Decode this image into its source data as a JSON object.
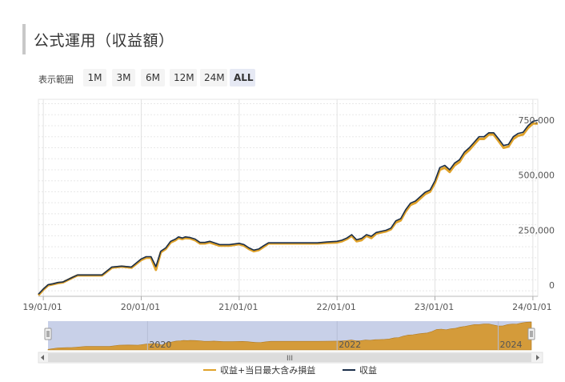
{
  "header": {
    "title": "公式運用（収益額）"
  },
  "range_selector": {
    "label": "表示範囲",
    "buttons": [
      {
        "label": "1M",
        "active": false
      },
      {
        "label": "3M",
        "active": false
      },
      {
        "label": "6M",
        "active": false
      },
      {
        "label": "12M",
        "active": false
      },
      {
        "label": "24M",
        "active": false
      },
      {
        "label": "ALL",
        "active": true
      }
    ]
  },
  "navigator": {
    "labels": [
      "2020",
      "2022",
      "2024"
    ],
    "scroll_grip": "III"
  },
  "colors": {
    "series_a": "#e0a22a",
    "series_b": "#1b2f4a",
    "navigator_fill": "#d49b3a",
    "navigator_mask": "#c8d0e8"
  },
  "chart_data": {
    "type": "line",
    "title": "公式運用（収益額）",
    "xlabel": "",
    "ylabel": "",
    "x_ticks": [
      "19/01/01",
      "20/01/01",
      "21/01/01",
      "22/01/01",
      "23/01/01",
      "24/01/01"
    ],
    "y_ticks": [
      "0",
      "250,000",
      "500,000",
      "750,000"
    ],
    "ylim": [
      -25000,
      870000
    ],
    "xlim": [
      2018.95,
      2024.05
    ],
    "legend": {
      "position": "bottom"
    },
    "series": [
      {
        "name": "収益+当日最大含み損益",
        "x": [
          2018.95,
          2019.0,
          2019.05,
          2019.1,
          2019.15,
          2019.2,
          2019.3,
          2019.35,
          2019.45,
          2019.55,
          2019.6,
          2019.7,
          2019.8,
          2019.9,
          2020.0,
          2020.05,
          2020.1,
          2020.15,
          2020.2,
          2020.25,
          2020.3,
          2020.35,
          2020.38,
          2020.42,
          2020.45,
          2020.5,
          2020.55,
          2020.6,
          2020.65,
          2020.7,
          2020.8,
          2020.9,
          2021.0,
          2021.05,
          2021.1,
          2021.15,
          2021.2,
          2021.25,
          2021.3,
          2021.4,
          2021.5,
          2021.6,
          2021.7,
          2021.8,
          2021.9,
          2022.0,
          2022.05,
          2022.1,
          2022.15,
          2022.2,
          2022.25,
          2022.3,
          2022.35,
          2022.4,
          2022.45,
          2022.5,
          2022.55,
          2022.6,
          2022.65,
          2022.7,
          2022.75,
          2022.8,
          2022.85,
          2022.9,
          2022.95,
          2023.0,
          2023.05,
          2023.1,
          2023.15,
          2023.2,
          2023.25,
          2023.3,
          2023.35,
          2023.4,
          2023.45,
          2023.5,
          2023.55,
          2023.6,
          2023.65,
          2023.7,
          2023.75,
          2023.8,
          2023.85,
          2023.9,
          2023.95,
          2024.0,
          2024.05
        ],
        "y": [
          -20000,
          5000,
          25000,
          30000,
          35000,
          38000,
          60000,
          70000,
          70000,
          70000,
          70000,
          105000,
          110000,
          105000,
          140000,
          150000,
          150000,
          95000,
          175000,
          190000,
          220000,
          230000,
          240000,
          235000,
          240000,
          238000,
          230000,
          215000,
          215000,
          220000,
          205000,
          205000,
          212000,
          205000,
          190000,
          180000,
          185000,
          200000,
          215000,
          215000,
          215000,
          215000,
          215000,
          215000,
          218000,
          220000,
          225000,
          235000,
          250000,
          225000,
          230000,
          250000,
          240000,
          260000,
          265000,
          270000,
          280000,
          310000,
          320000,
          360000,
          390000,
          400000,
          420000,
          440000,
          450000,
          490000,
          550000,
          560000,
          540000,
          570000,
          585000,
          620000,
          640000,
          665000,
          690000,
          690000,
          710000,
          710000,
          680000,
          650000,
          655000,
          690000,
          705000,
          710000,
          740000,
          760000,
          760000
        ]
      },
      {
        "name": "収益",
        "x": [
          2018.95,
          2019.0,
          2019.05,
          2019.1,
          2019.15,
          2019.2,
          2019.3,
          2019.35,
          2019.45,
          2019.55,
          2019.6,
          2019.7,
          2019.8,
          2019.9,
          2020.0,
          2020.05,
          2020.1,
          2020.15,
          2020.2,
          2020.25,
          2020.3,
          2020.35,
          2020.38,
          2020.42,
          2020.45,
          2020.5,
          2020.55,
          2020.6,
          2020.65,
          2020.7,
          2020.8,
          2020.9,
          2021.0,
          2021.05,
          2021.1,
          2021.15,
          2021.2,
          2021.25,
          2021.3,
          2021.4,
          2021.5,
          2021.6,
          2021.7,
          2021.8,
          2021.9,
          2022.0,
          2022.05,
          2022.1,
          2022.15,
          2022.2,
          2022.25,
          2022.3,
          2022.35,
          2022.4,
          2022.45,
          2022.5,
          2022.55,
          2022.6,
          2022.65,
          2022.7,
          2022.75,
          2022.8,
          2022.85,
          2022.9,
          2022.95,
          2023.0,
          2023.05,
          2023.1,
          2023.15,
          2023.2,
          2023.25,
          2023.3,
          2023.35,
          2023.4,
          2023.45,
          2023.5,
          2023.55,
          2023.6,
          2023.65,
          2023.7,
          2023.75,
          2023.8,
          2023.85,
          2023.9,
          2023.95,
          2024.0,
          2024.05
        ],
        "y": [
          -15000,
          8000,
          28000,
          32000,
          38000,
          40000,
          62000,
          72000,
          72000,
          72000,
          72000,
          108000,
          112000,
          108000,
          145000,
          155000,
          155000,
          110000,
          180000,
          195000,
          225000,
          235000,
          245000,
          240000,
          245000,
          242000,
          235000,
          220000,
          220000,
          225000,
          210000,
          210000,
          216000,
          210000,
          195000,
          185000,
          190000,
          205000,
          218000,
          218000,
          218000,
          218000,
          218000,
          218000,
          222000,
          225000,
          230000,
          240000,
          255000,
          232000,
          238000,
          255000,
          248000,
          265000,
          270000,
          275000,
          285000,
          318000,
          328000,
          368000,
          398000,
          408000,
          428000,
          448000,
          458000,
          500000,
          560000,
          570000,
          550000,
          580000,
          595000,
          630000,
          650000,
          675000,
          700000,
          700000,
          718000,
          718000,
          690000,
          660000,
          665000,
          700000,
          715000,
          720000,
          750000,
          770000,
          775000
        ]
      }
    ]
  }
}
